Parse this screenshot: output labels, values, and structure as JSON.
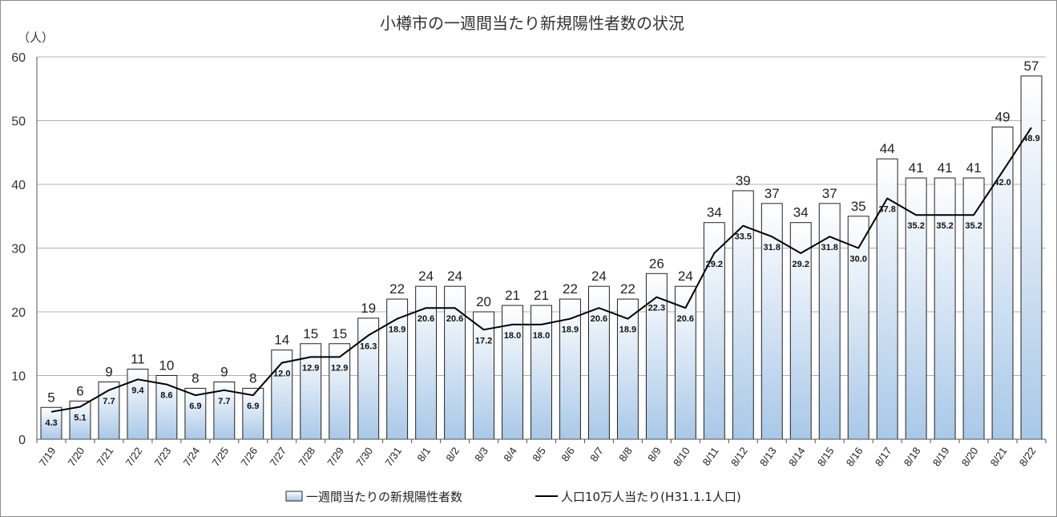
{
  "chart_data": {
    "type": "bar",
    "title": "小樽市の一週間当たり新規陽性者数の状況",
    "y_unit": "（人）",
    "ylim": [
      0,
      60
    ],
    "yticks": [
      0,
      10,
      20,
      30,
      40,
      50,
      60
    ],
    "grid": "horizontal",
    "legend_position": "bottom",
    "categories": [
      "7/19",
      "7/20",
      "7/21",
      "7/22",
      "7/23",
      "7/24",
      "7/25",
      "7/26",
      "7/27",
      "7/28",
      "7/29",
      "7/30",
      "7/31",
      "8/1",
      "8/2",
      "8/3",
      "8/4",
      "8/5",
      "8/6",
      "8/7",
      "8/8",
      "8/9",
      "8/10",
      "8/11",
      "8/12",
      "8/13",
      "8/14",
      "8/15",
      "8/16",
      "8/17",
      "8/18",
      "8/19",
      "8/20",
      "8/21",
      "8/22"
    ],
    "series": [
      {
        "name": "一週間当たりの新規陽性者数",
        "type": "bar",
        "values": [
          5,
          6,
          9,
          11,
          10,
          8,
          9,
          8,
          14,
          15,
          15,
          19,
          22,
          24,
          24,
          20,
          21,
          21,
          22,
          24,
          22,
          26,
          24,
          34,
          39,
          37,
          34,
          37,
          35,
          44,
          41,
          41,
          41,
          49,
          57
        ]
      },
      {
        "name": "人口10万人当たり(H31.1.1人口)",
        "type": "line",
        "values": [
          4.3,
          5.1,
          7.7,
          9.4,
          8.6,
          6.9,
          7.7,
          6.9,
          12.0,
          12.9,
          12.9,
          16.3,
          18.9,
          20.6,
          20.6,
          17.2,
          18.0,
          18.0,
          18.9,
          20.6,
          18.9,
          22.3,
          20.6,
          29.2,
          33.5,
          31.8,
          29.2,
          31.8,
          30.0,
          37.8,
          35.2,
          35.2,
          35.2,
          42.0,
          48.9
        ]
      }
    ]
  },
  "colors": {
    "bar_top": "#ffffff",
    "bar_bottom": "#a9c8e8",
    "bar_border": "#222222",
    "line": "#000000",
    "grid": "#b0b0b0"
  }
}
